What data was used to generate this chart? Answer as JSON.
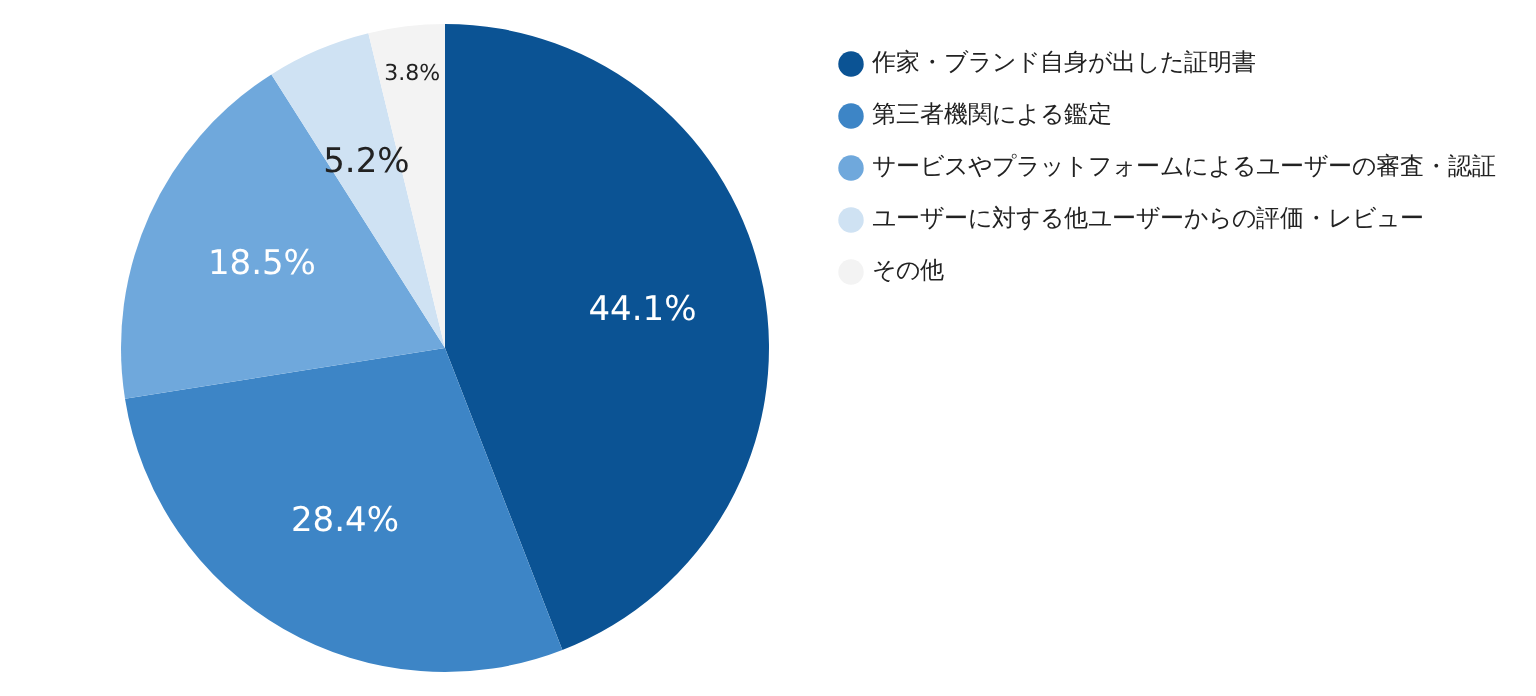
{
  "chart_data": {
    "type": "pie",
    "categories": [
      "作家・ブランド自身が出した証明書",
      "第三者機関による鑑定",
      "サービスやプラットフォームによるユーザーの審査・認証",
      "ユーザーに対する他ユーザーからの評価・レビュー",
      "その他"
    ],
    "values": [
      44.1,
      28.4,
      18.5,
      5.2,
      3.8
    ],
    "value_labels": [
      "44.1%",
      "28.4%",
      "18.5%",
      "5.2%",
      "3.8%"
    ],
    "colors": [
      "#0b5394",
      "#3d85c6",
      "#6fa8dc",
      "#cfe2f3",
      "#f3f3f3"
    ],
    "legend": "top right"
  }
}
